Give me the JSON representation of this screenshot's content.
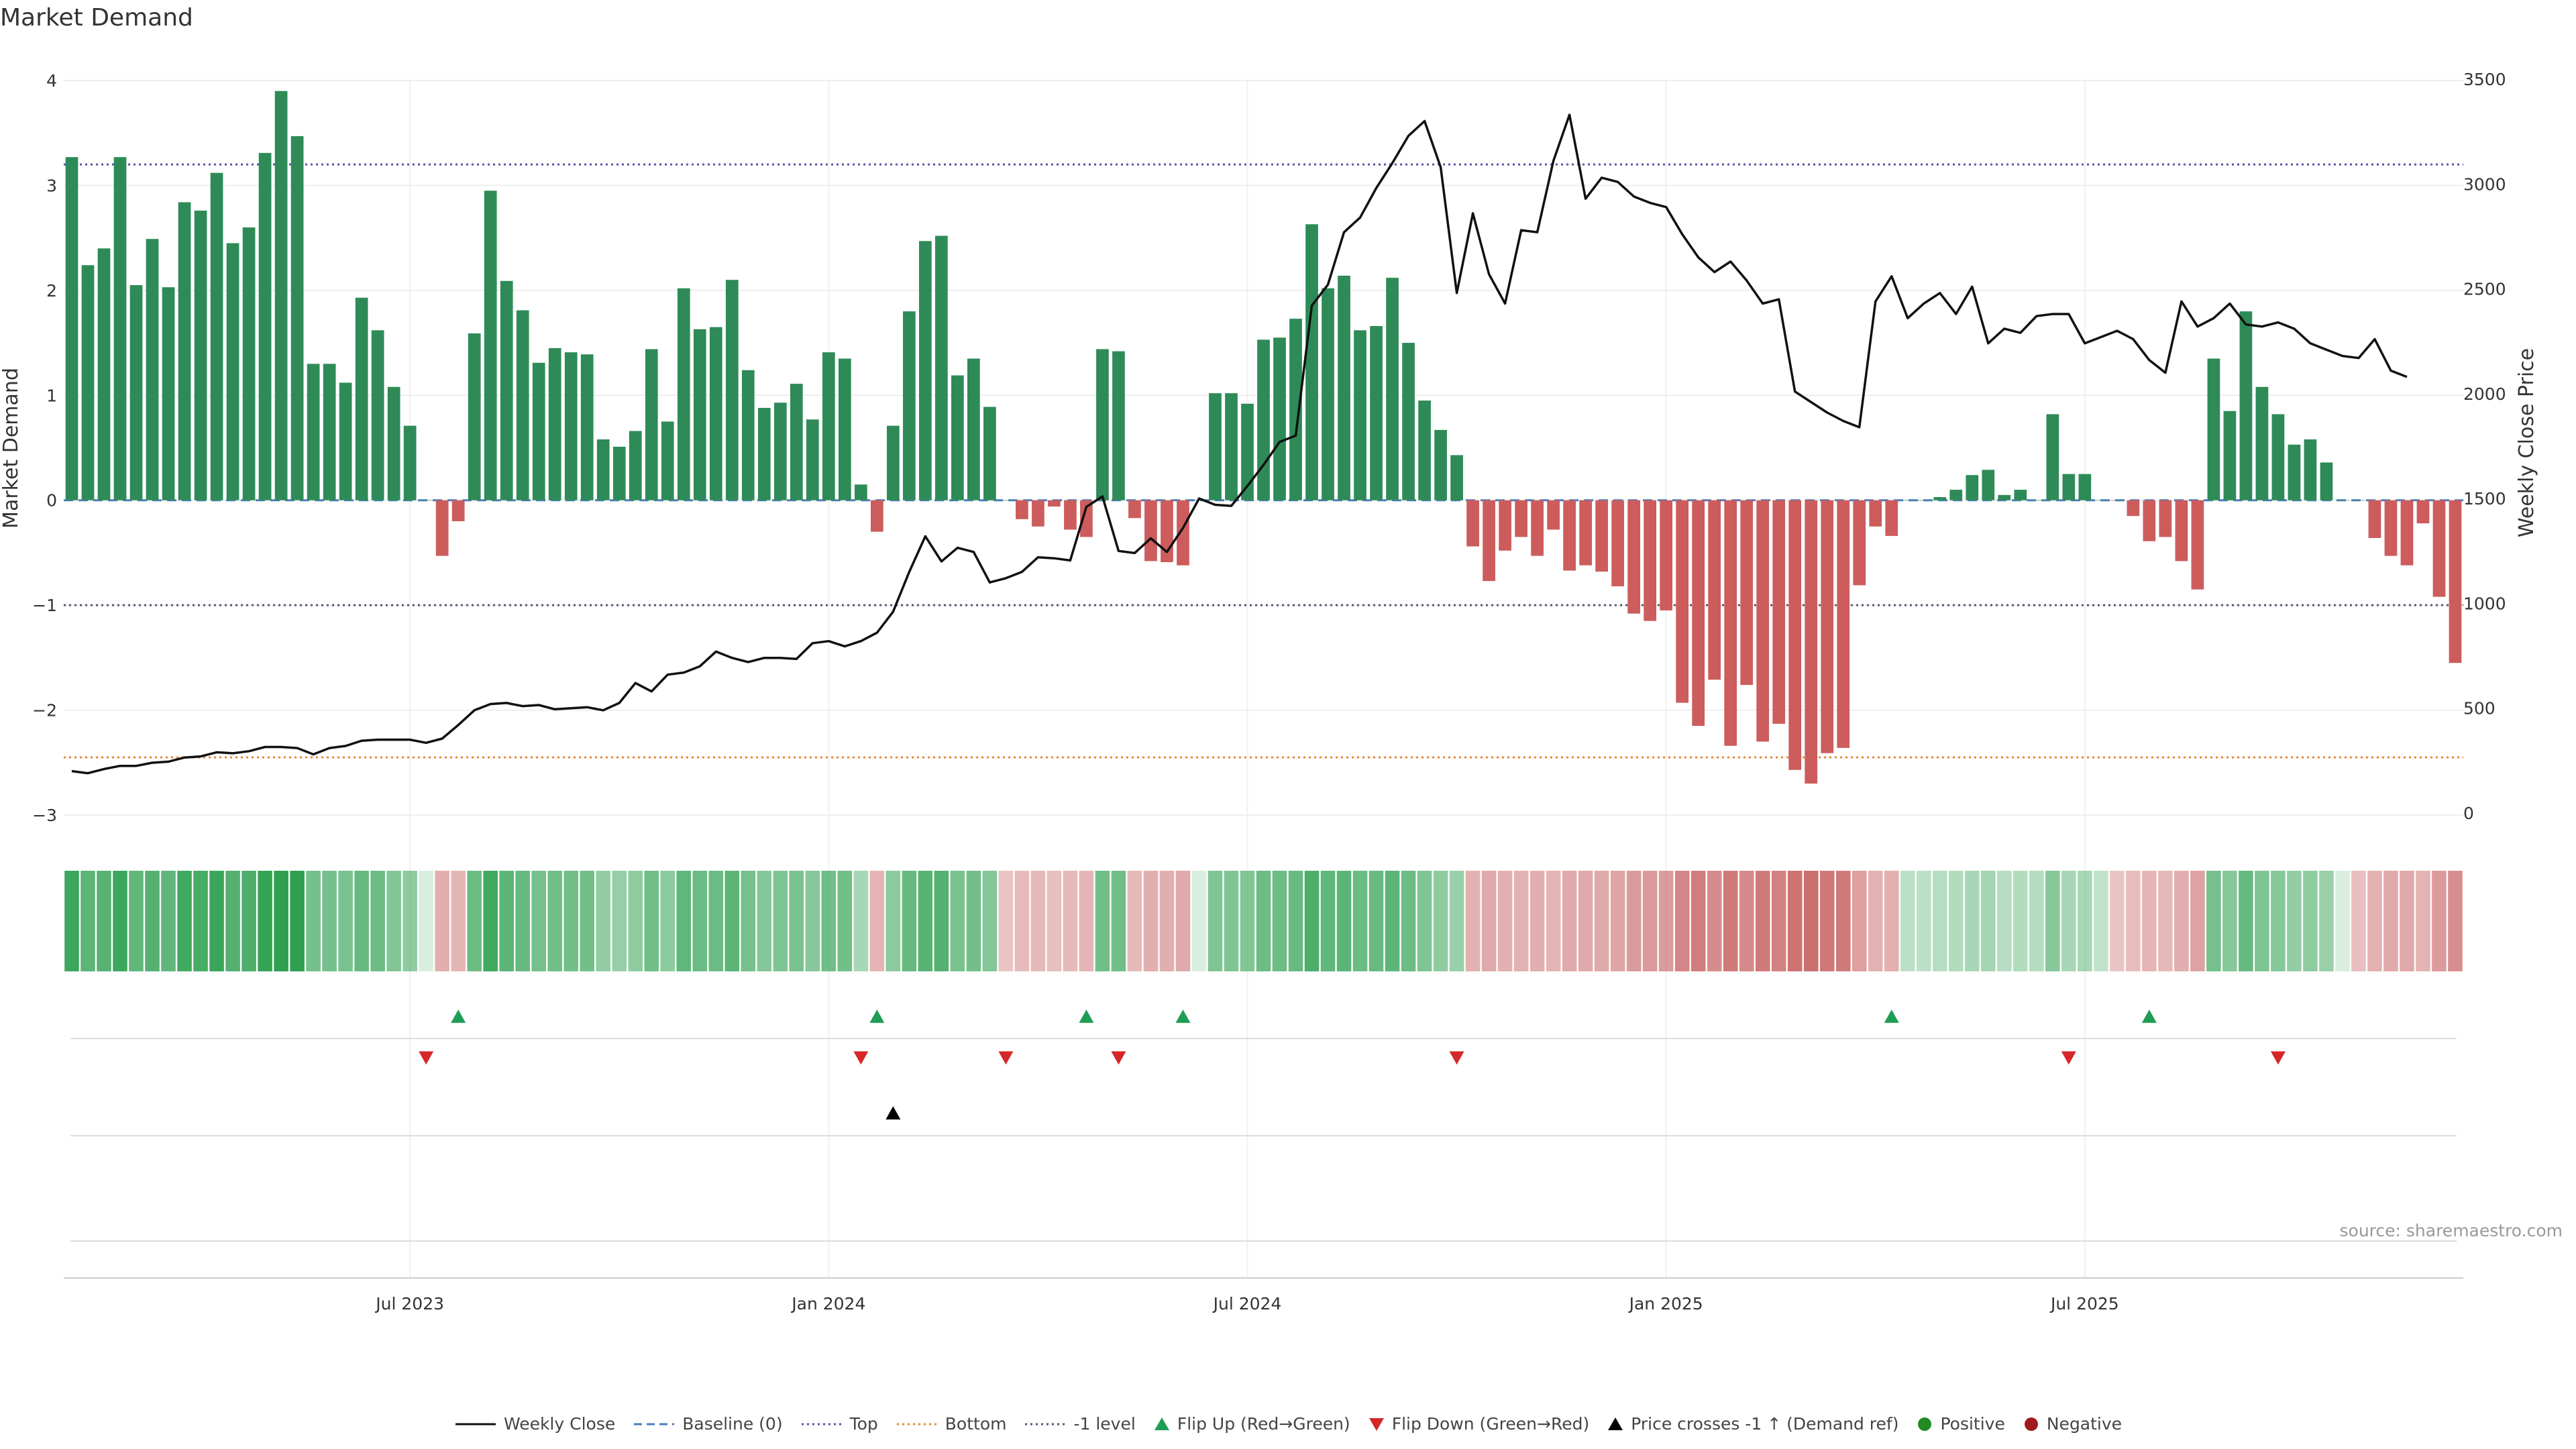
{
  "title": "Market Demand",
  "source": "source: sharemaestro.com",
  "colors": {
    "positive": "#2e8b57",
    "negative": "#cd5c5c",
    "price": "#111111",
    "top_line": "#5555aa",
    "bottom_line": "#e08a2c",
    "minus_one_line": "#555577",
    "baseline": "#4a7ebb",
    "flip_up": "#1f9d55",
    "flip_down": "#d62728",
    "price_cross": "#000000",
    "positive_dot": "#228b22",
    "negative_dot": "#a01c1c"
  },
  "legend": [
    {
      "label": "Weekly Close",
      "style": "line-solid",
      "color": "#111111"
    },
    {
      "label": "Baseline (0)",
      "style": "line-dashed",
      "color": "#4a7ebb"
    },
    {
      "label": "Top",
      "style": "line-dotted",
      "color": "#5555aa"
    },
    {
      "label": "Bottom",
      "style": "line-dotted",
      "color": "#e08a2c"
    },
    {
      "label": "-1 level",
      "style": "line-dotted",
      "color": "#555577"
    },
    {
      "label": "Flip Up (Red→Green)",
      "style": "triangle-up",
      "color": "#1f9d55"
    },
    {
      "label": "Flip Down (Green→Red)",
      "style": "triangle-down",
      "color": "#d62728"
    },
    {
      "label": "Price crosses -1 ↑ (Demand ref)",
      "style": "triangle-up",
      "color": "#000000"
    },
    {
      "label": "Positive",
      "style": "dot",
      "color": "#228b22"
    },
    {
      "label": "Negative",
      "style": "dot",
      "color": "#a01c1c"
    }
  ],
  "chart_data": {
    "type": "bar",
    "ylabel": "Market Demand",
    "y2label": "Weekly Close Price",
    "ylim": [
      -3,
      4
    ],
    "yticks": [
      "−3",
      "−2",
      "−1",
      "0",
      "1",
      "2",
      "3",
      "4"
    ],
    "y2lim": [
      0,
      3500
    ],
    "y2ticks": [
      "0",
      "500",
      "1000",
      "1500",
      "2000",
      "2500",
      "3000",
      "3500"
    ],
    "x_tick_labels": [
      {
        "label": "Jul 2023",
        "index": 21
      },
      {
        "label": "Jan 2024",
        "index": 47
      },
      {
        "label": "Jul 2024",
        "index": 73
      },
      {
        "label": "Jan 2025",
        "index": 99
      },
      {
        "label": "Jul 2025",
        "index": 125
      }
    ],
    "reference_lines": {
      "baseline": 0,
      "top": 3.2,
      "bottom": -2.45,
      "minus_one": -1
    },
    "demand": [
      3.27,
      2.24,
      2.4,
      3.27,
      2.05,
      2.49,
      2.03,
      2.84,
      2.76,
      3.12,
      2.45,
      2.6,
      3.31,
      3.9,
      3.47,
      1.3,
      1.3,
      1.12,
      1.93,
      1.62,
      1.08,
      0.71,
      0,
      -0.53,
      -0.2,
      1.59,
      2.95,
      2.09,
      1.81,
      1.31,
      1.45,
      1.41,
      1.39,
      0.58,
      0.51,
      0.66,
      1.44,
      0.75,
      2.02,
      1.63,
      1.65,
      2.1,
      1.24,
      0.88,
      0.93,
      1.11,
      0.77,
      1.41,
      1.35,
      0.15,
      -0.3,
      0.71,
      1.8,
      2.47,
      2.52,
      1.19,
      1.35,
      0.89,
      0,
      -0.18,
      -0.25,
      -0.06,
      -0.28,
      -0.35,
      1.44,
      1.42,
      -0.17,
      -0.58,
      -0.59,
      -0.62,
      0,
      1.02,
      1.02,
      0.92,
      1.53,
      1.55,
      1.73,
      2.63,
      2.02,
      2.14,
      1.62,
      1.66,
      2.12,
      1.5,
      0.95,
      0.67,
      0.43,
      -0.44,
      -0.77,
      -0.48,
      -0.35,
      -0.53,
      -0.28,
      -0.67,
      -0.62,
      -0.68,
      -0.82,
      -1.08,
      -1.15,
      -1.05,
      -1.93,
      -2.15,
      -1.71,
      -2.34,
      -1.76,
      -2.3,
      -2.13,
      -2.57,
      -2.7,
      -2.41,
      -2.36,
      -0.81,
      -0.25,
      -0.34,
      0,
      0,
      0.03,
      0.1,
      0.24,
      0.29,
      0.05,
      0.1,
      0,
      0.82,
      0.25,
      0.25,
      0,
      0,
      -0.15,
      -0.39,
      -0.35,
      -0.58,
      -0.85,
      1.35,
      0.85,
      1.8,
      1.08,
      0.82,
      0.53,
      0.58,
      0.36,
      0,
      0,
      -0.36,
      -0.53,
      -0.62,
      -0.22,
      -0.92,
      -1.55
    ],
    "price": [
      200,
      190,
      210,
      225,
      225,
      240,
      245,
      265,
      270,
      290,
      285,
      295,
      315,
      315,
      310,
      280,
      310,
      320,
      345,
      350,
      350,
      350,
      335,
      355,
      420,
      490,
      520,
      525,
      510,
      515,
      495,
      500,
      505,
      490,
      525,
      620,
      580,
      660,
      670,
      700,
      770,
      740,
      720,
      740,
      740,
      735,
      810,
      820,
      795,
      820,
      860,
      960,
      1150,
      1320,
      1200,
      1265,
      1245,
      1100,
      1120,
      1150,
      1220,
      1215,
      1205,
      1460,
      1510,
      1250,
      1240,
      1310,
      1245,
      1360,
      1500,
      1470,
      1465,
      1560,
      1660,
      1770,
      1800,
      2420,
      2520,
      2770,
      2840,
      2980,
      3100,
      3230,
      3300,
      3080,
      2480,
      2860,
      2570,
      2430,
      2780,
      2770,
      3110,
      3330,
      2930,
      3030,
      3010,
      2940,
      2910,
      2890,
      2760,
      2650,
      2580,
      2630,
      2540,
      2430,
      2450,
      2010,
      1960,
      1910,
      1870,
      1840,
      2440,
      2560,
      2360,
      2430,
      2480,
      2380,
      2510,
      2240,
      2310,
      2290,
      2370,
      2380,
      2380,
      2240,
      2270,
      2300,
      2260,
      2160,
      2100,
      2440,
      2320,
      2360,
      2430,
      2330,
      2320,
      2340,
      2310,
      2240,
      2210,
      2180,
      2170,
      2260,
      2110,
      2080
    ],
    "strength_stripe": [
      0.62,
      0.5,
      0.52,
      0.62,
      0.48,
      0.53,
      0.48,
      0.6,
      0.58,
      0.63,
      0.53,
      0.56,
      0.66,
      0.78,
      0.7,
      0.4,
      0.4,
      0.38,
      0.46,
      0.43,
      0.35,
      0.3,
      0,
      -0.22,
      -0.18,
      0.43,
      0.6,
      0.5,
      0.46,
      0.4,
      0.42,
      0.41,
      0.41,
      0.28,
      0.27,
      0.3,
      0.42,
      0.32,
      0.48,
      0.44,
      0.44,
      0.5,
      0.4,
      0.34,
      0.36,
      0.38,
      0.33,
      0.42,
      0.41,
      0.2,
      -0.18,
      0.32,
      0.46,
      0.52,
      0.53,
      0.38,
      0.41,
      0.34,
      -0.12,
      -0.16,
      -0.17,
      -0.14,
      -0.17,
      -0.18,
      0.42,
      0.42,
      -0.17,
      -0.22,
      -0.22,
      -0.23,
      0,
      0.36,
      0.36,
      0.35,
      0.43,
      0.43,
      0.45,
      0.56,
      0.48,
      0.5,
      0.44,
      0.45,
      0.5,
      0.43,
      0.36,
      0.3,
      0.26,
      -0.2,
      -0.23,
      -0.21,
      -0.2,
      -0.22,
      -0.19,
      -0.23,
      -0.23,
      -0.23,
      -0.26,
      -0.3,
      -0.31,
      -0.3,
      -0.4,
      -0.43,
      -0.37,
      -0.45,
      -0.38,
      -0.45,
      -0.42,
      -0.48,
      -0.5,
      -0.46,
      -0.45,
      -0.28,
      -0.2,
      -0.21,
      0.12,
      0.12,
      0.14,
      0.16,
      0.2,
      0.22,
      0.14,
      0.16,
      0.15,
      0.33,
      0.2,
      0.2,
      0.1,
      -0.12,
      -0.15,
      -0.18,
      -0.17,
      -0.22,
      -0.27,
      0.4,
      0.33,
      0.46,
      0.36,
      0.33,
      0.28,
      0.3,
      0.26,
      0,
      -0.14,
      -0.2,
      -0.23,
      -0.24,
      -0.19,
      -0.3,
      -0.36
    ],
    "flip_up_indices": [
      24,
      50,
      63,
      69,
      113,
      129
    ],
    "flip_down_indices": [
      22,
      49,
      58,
      65,
      86,
      124,
      137
    ],
    "price_cross_indices": [
      51
    ]
  }
}
